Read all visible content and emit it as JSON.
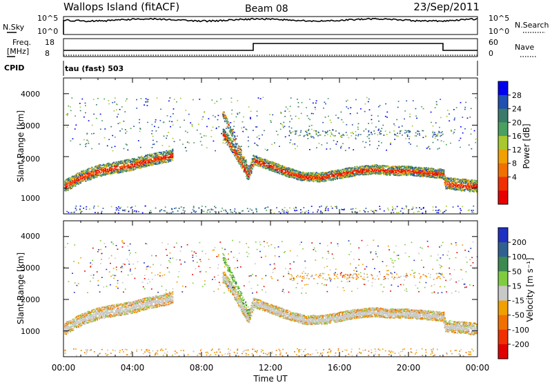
{
  "header": {
    "site_title": "Wallops Island (fitACF)",
    "beam": "Beam 08",
    "date": "23/Sep/2011"
  },
  "noise_panel": {
    "left_label": "N.Sky",
    "right_label": "N.Search",
    "left_ticks": [
      "10^5",
      "10^0"
    ],
    "right_ticks": [
      "10^5",
      "10^0"
    ]
  },
  "freq_panel": {
    "left_label_line1": "Freq.",
    "left_label_line2": "[MHz]",
    "right_label": "Nave",
    "left_ticks": [
      "18",
      "8"
    ],
    "right_ticks": [
      "60",
      "0"
    ]
  },
  "cpid": {
    "label": "CPID",
    "mode_text": "tau (fast) 503"
  },
  "power_panel": {
    "ylabel": "Slant Range [km]",
    "yticks": [
      "4000",
      "3000",
      "2000",
      "1000"
    ],
    "colorbar_label": "Power [dB]",
    "colorbar_ticks": [
      "28",
      "24",
      "20",
      "16",
      "12",
      "8",
      "4"
    ],
    "colors": [
      "#0000ee",
      "#2050b0",
      "#3a7a6a",
      "#4aa060",
      "#a8c830",
      "#f0a000",
      "#f07000",
      "#f03000",
      "#e80000"
    ]
  },
  "velocity_panel": {
    "ylabel": "Slant Range [km]",
    "yticks": [
      "4000",
      "3000",
      "2000",
      "1000"
    ],
    "colorbar_label": "Velocity [m s⁻¹]",
    "colorbar_ticks": [
      "200",
      "100",
      "50",
      "15",
      "-15",
      "-50",
      "-100",
      "-200"
    ],
    "colors": [
      "#2030c0",
      "#306090",
      "#3c8a50",
      "#80cc40",
      "#c8c8c8",
      "#f0a000",
      "#f07000",
      "#f03000",
      "#e00000"
    ]
  },
  "x_axis": {
    "label": "Time UT",
    "ticks": [
      "00:00",
      "04:00",
      "08:00",
      "12:00",
      "16:00",
      "20:00",
      "00:00"
    ]
  },
  "chart_data": {
    "type": "heatmap",
    "x_range_hours": [
      0,
      24
    ],
    "y_range_km": [
      180,
      4500
    ],
    "frequency_mhz": [
      {
        "start_h": 0,
        "end_h": 11,
        "value": 10.5
      },
      {
        "start_h": 11,
        "end_h": 22,
        "value": 15.5
      },
      {
        "start_h": 22,
        "end_h": 24,
        "value": 10.5
      }
    ],
    "power_scale_db": [
      0,
      32
    ],
    "velocity_scale_ms": [
      -200,
      200
    ],
    "main_echo_band_km": [
      [
        0.0,
        1050
      ],
      [
        0.5,
        1200
      ],
      [
        1.0,
        1350
      ],
      [
        2.0,
        1550
      ],
      [
        3.0,
        1650
      ],
      [
        4.0,
        1750
      ],
      [
        5.0,
        1900
      ],
      [
        6.0,
        2000
      ],
      [
        9.3,
        2700
      ],
      [
        10.0,
        2100
      ],
      [
        10.7,
        1400
      ],
      [
        11.0,
        1900
      ],
      [
        12.0,
        1700
      ],
      [
        13.0,
        1500
      ],
      [
        14.0,
        1350
      ],
      [
        15.0,
        1350
      ],
      [
        16.0,
        1450
      ],
      [
        17.0,
        1550
      ],
      [
        18.0,
        1600
      ],
      [
        19.0,
        1550
      ],
      [
        20.0,
        1550
      ],
      [
        21.0,
        1500
      ],
      [
        22.0,
        1450
      ],
      [
        22.1,
        1150
      ],
      [
        24.0,
        1050
      ]
    ]
  }
}
